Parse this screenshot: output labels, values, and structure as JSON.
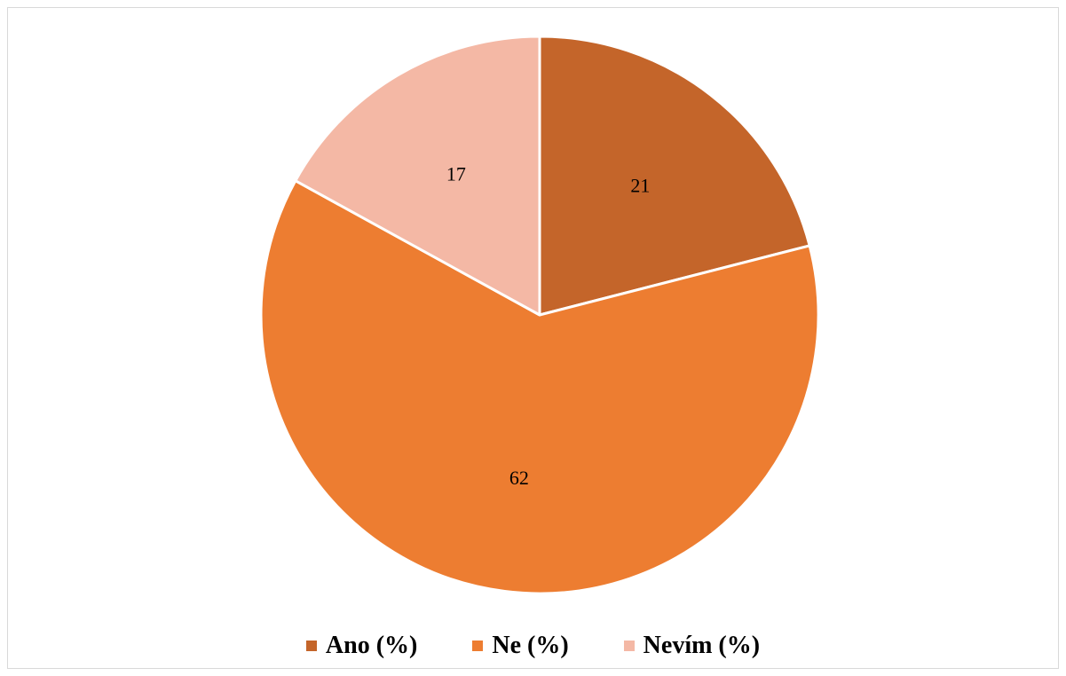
{
  "chart_data": {
    "type": "pie",
    "title": "",
    "slices": [
      {
        "name": "Ano (%)",
        "value": 21,
        "label": "21",
        "color": "#C4652A"
      },
      {
        "name": "Ne (%)",
        "value": 62,
        "label": "62",
        "color": "#ED7D31"
      },
      {
        "name": "Nevím (%)",
        "value": 17,
        "label": "17",
        "color": "#F4B8A5"
      }
    ],
    "start_angle_deg": 0,
    "direction": "clockwise",
    "legend": {
      "position": "bottom"
    }
  }
}
